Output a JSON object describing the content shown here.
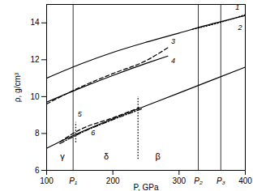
{
  "chart_data": {
    "type": "line",
    "x_label": "P, GPa",
    "y_label": "ρ, g/cm³",
    "xlim": [
      100,
      400
    ],
    "xticks": [
      100,
      200,
      300,
      400
    ],
    "ylim": [
      6,
      15
    ],
    "yticks": [
      6,
      8,
      10,
      12,
      14
    ],
    "grid": false,
    "color": "#000000",
    "series": [
      {
        "name": "1",
        "line_style": "solid",
        "x": [
          100,
          150,
          200,
          250,
          300,
          350,
          400
        ],
        "values": [
          11.0,
          11.75,
          12.4,
          12.95,
          13.45,
          13.95,
          14.4
        ],
        "label_x": 388,
        "label_y": 14.85
      },
      {
        "name": "2",
        "line_style": "dotted",
        "x": [
          320,
          360,
          400
        ],
        "values": [
          13.65,
          14.0,
          14.45
        ],
        "label_x": 392,
        "label_y": 13.75
      },
      {
        "name": "3",
        "line_style": "dashed",
        "x": [
          100,
          150,
          200,
          250,
          283
        ],
        "values": [
          9.6,
          10.5,
          11.25,
          11.95,
          12.65
        ],
        "label_x": 291,
        "label_y": 13.0
      },
      {
        "name": "4",
        "line_style": "solid",
        "x": [
          100,
          150,
          200,
          250,
          283
        ],
        "values": [
          9.7,
          10.45,
          11.15,
          11.8,
          12.2
        ],
        "label_x": 291,
        "label_y": 11.95
      },
      {
        "name": "5",
        "line_style": "dashed",
        "x": [
          120,
          150,
          200,
          240
        ],
        "values": [
          7.55,
          8.2,
          8.85,
          9.4
        ],
        "label_x": 150,
        "label_y": 9.05
      },
      {
        "name": "6",
        "line_style": "dashdot",
        "x": [
          120,
          150,
          200,
          245
        ],
        "values": [
          7.45,
          8.0,
          8.75,
          9.35
        ],
        "label_x": 170,
        "label_y": 8.05
      },
      {
        "name": "",
        "line_style": "solid",
        "x": [
          100,
          150,
          200,
          250,
          300,
          350,
          400
        ],
        "values": [
          7.2,
          8.05,
          8.8,
          9.5,
          10.2,
          10.9,
          11.6
        ]
      }
    ],
    "vertical_lines": [
      {
        "x": 140,
        "label": "P₁",
        "line_style": "solid"
      },
      {
        "x": 329,
        "label": "P₂",
        "line_style": "solid"
      },
      {
        "x": 363,
        "label": "P₃",
        "line_style": "solid"
      },
      {
        "x": 144,
        "y": [
          7.5,
          8.6
        ],
        "line_style": "dotted"
      },
      {
        "x": 238,
        "y": [
          6.6,
          10.0
        ],
        "line_style": "dotted"
      }
    ],
    "annotations": [
      {
        "text": "γ",
        "x": 124,
        "y": 6.75
      },
      {
        "text": "δ",
        "x": 190,
        "y": 6.75
      },
      {
        "text": "β",
        "x": 268,
        "y": 6.75
      }
    ]
  }
}
